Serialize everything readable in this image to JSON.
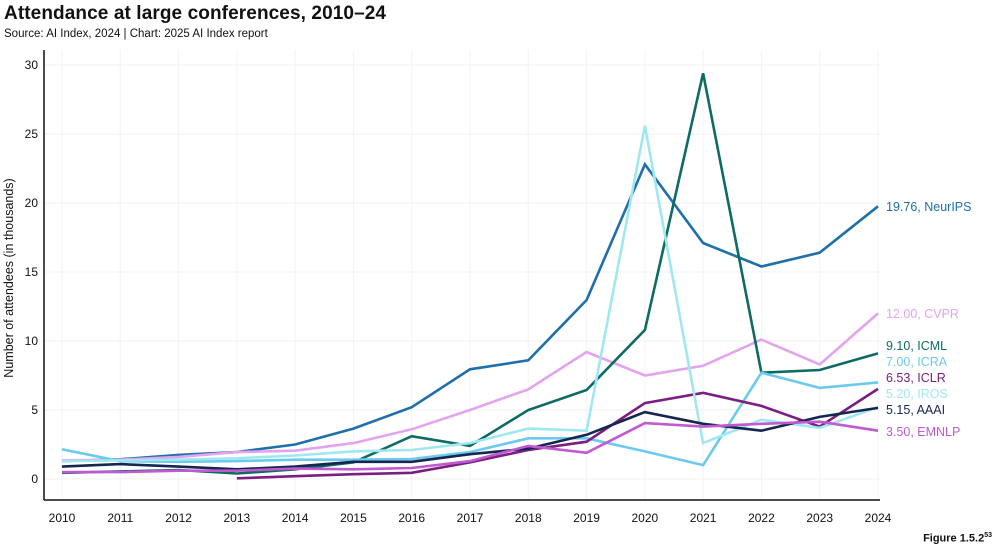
{
  "header": {
    "title": "Attendance at large conferences, 2010–24",
    "subtitle": "Source: AI Index, 2024 | Chart: 2025 AI Index report"
  },
  "figure_label": "Figure 1.5.2",
  "figure_footnote": "53",
  "chart_data": {
    "type": "line",
    "title": "Attendance at large conferences, 2010–24",
    "xlabel": "",
    "ylabel": "Number of attendees (in thousands)",
    "x": [
      2010,
      2011,
      2012,
      2013,
      2014,
      2015,
      2016,
      2017,
      2018,
      2019,
      2020,
      2021,
      2022,
      2023,
      2024
    ],
    "x_tick_labels": [
      "2010",
      "2011",
      "2012",
      "2013",
      "2014",
      "2015",
      "2016",
      "2017",
      "2018",
      "2019",
      "2020",
      "2021",
      "2022",
      "2023",
      "2024"
    ],
    "y_ticks": [
      0,
      5,
      10,
      15,
      20,
      25,
      30
    ],
    "ylim": [
      -1,
      31
    ],
    "grid": true,
    "legend": "end-of-line labels, right",
    "series": [
      {
        "name": "NeurIPS",
        "color": "#1f6faa",
        "end_label": "19.76, NeurIPS",
        "values": [
          1.3,
          1.43,
          1.75,
          1.95,
          2.5,
          3.65,
          5.2,
          7.95,
          8.6,
          12.97,
          22.8,
          17.1,
          15.4,
          16.4,
          19.76
        ]
      },
      {
        "name": "CVPR",
        "color": "#e4a3ef",
        "end_label": "12.00, CVPR",
        "values": [
          1.35,
          1.4,
          1.6,
          1.95,
          2.05,
          2.6,
          3.6,
          5.0,
          6.5,
          9.2,
          7.5,
          8.2,
          10.1,
          8.3,
          12.0
        ]
      },
      {
        "name": "ICML",
        "color": "#0d6b64",
        "end_label": "9.10, ICML",
        "values": [
          0.45,
          0.55,
          0.65,
          0.4,
          0.7,
          1.2,
          3.1,
          2.4,
          5.0,
          6.45,
          10.8,
          29.4,
          7.7,
          7.9,
          9.1
        ]
      },
      {
        "name": "ICRA",
        "color": "#6ccaef",
        "end_label": "7.00, ICRA",
        "values": [
          2.15,
          1.3,
          1.25,
          1.3,
          1.4,
          1.4,
          1.45,
          1.95,
          2.95,
          2.95,
          2.0,
          1.0,
          7.7,
          6.6,
          7.0
        ]
      },
      {
        "name": "ICLR",
        "color": "#7b1e82",
        "end_label": "6.53, ICLR",
        "values": [
          null,
          null,
          null,
          0.05,
          0.2,
          0.35,
          0.45,
          1.2,
          2.1,
          2.7,
          5.5,
          6.25,
          5.3,
          3.8,
          6.53
        ]
      },
      {
        "name": "IROS",
        "color": "#9fe8ef",
        "end_label": "5.20, IROS",
        "values": [
          1.3,
          1.35,
          1.4,
          1.5,
          1.7,
          2.0,
          2.1,
          2.6,
          3.65,
          3.5,
          25.6,
          2.6,
          4.3,
          3.7,
          5.2
        ]
      },
      {
        "name": "AAAI",
        "color": "#15264f",
        "end_label": "5.15, AAAI",
        "values": [
          0.9,
          1.08,
          0.9,
          0.7,
          0.9,
          1.25,
          1.25,
          1.8,
          2.2,
          3.2,
          4.85,
          4.0,
          3.5,
          4.5,
          5.15
        ]
      },
      {
        "name": "EMNLP",
        "color": "#c05ad0",
        "end_label": "3.50, EMNLP",
        "values": [
          0.5,
          0.5,
          0.6,
          0.6,
          0.75,
          0.7,
          0.8,
          1.3,
          2.4,
          1.9,
          4.05,
          3.8,
          4.0,
          4.15,
          3.5
        ]
      }
    ]
  }
}
